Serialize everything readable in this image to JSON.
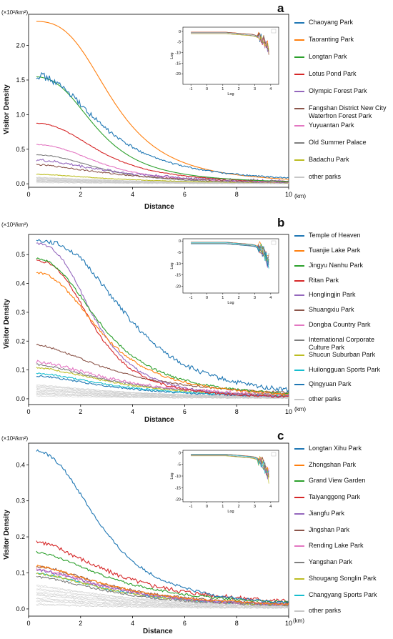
{
  "figure": {
    "xlabel": "Distance",
    "ylabel": "Visitor Density",
    "x_unit": "(km)",
    "y_unit": "(×10²/km²)",
    "inset_xlabel": "Log",
    "inset_ylabel": "Log"
  },
  "chart_data": [
    {
      "panel": "a",
      "type": "line",
      "xlabel": "Distance",
      "ylabel": "Visitor Density",
      "xlim": [
        0,
        10
      ],
      "ylim": [
        -0.05,
        2.45
      ],
      "xticks": [
        0,
        2,
        4,
        6,
        8,
        10
      ],
      "yticks": [
        0.0,
        0.5,
        1.0,
        1.5,
        2.0
      ],
      "ytick_labels": [
        "0.0",
        "0.5",
        "1.0",
        "1.5",
        "2.0"
      ],
      "legend_position": "right outside",
      "series": [
        {
          "name": "Chaoyang Park",
          "color": "#1f77b4",
          "peak": 1.58,
          "noise": 0.06,
          "shape": "chaoyang"
        },
        {
          "name": "Taoranting Park",
          "color": "#ff7f0e",
          "peak": 2.35,
          "noise": 0,
          "shape": "taoranting"
        },
        {
          "name": "Longtan Park",
          "color": "#2ca02c",
          "peak": 1.55,
          "noise": 0,
          "shape": "longtan"
        },
        {
          "name": "Lotus Pond Park",
          "color": "#d62728",
          "peak": 0.88,
          "noise": 0.005,
          "shape": "mid"
        },
        {
          "name": "Olympic Forest Park",
          "color": "#9467bd",
          "peak": 0.35,
          "noise": 0.02,
          "shape": "slow"
        },
        {
          "name": "Fangshan District New City Waterfron Forest Park",
          "color": "#8c564b",
          "peak": 0.28,
          "noise": 0.01,
          "shape": "slow"
        },
        {
          "name": "Yuyuantan Park",
          "color": "#e377c2",
          "peak": 0.57,
          "noise": 0.005,
          "shape": "mid"
        },
        {
          "name": "Old Summer Palace",
          "color": "#7f7f7f",
          "peak": 0.42,
          "noise": 0.005,
          "shape": "mid"
        },
        {
          "name": "Badachu Park",
          "color": "#bcbd22",
          "peak": 0.14,
          "noise": 0.005,
          "shape": "slow"
        },
        {
          "name": "other parks",
          "color": "#c7c7c7",
          "peak": 0.1,
          "noise": 0.005,
          "shape": "others"
        }
      ],
      "inset": {
        "xlim": [
          -1.5,
          4.5
        ],
        "ylim": [
          -25,
          2
        ],
        "xticks": [
          -1,
          0,
          1,
          2,
          3,
          4
        ],
        "yticks": [
          0,
          -5,
          -10,
          -15,
          -20
        ]
      }
    },
    {
      "panel": "b",
      "type": "line",
      "xlabel": "Distance",
      "ylabel": "Visitor Density",
      "xlim": [
        0,
        10
      ],
      "ylim": [
        -0.02,
        0.57
      ],
      "xticks": [
        0,
        2,
        4,
        6,
        8,
        10
      ],
      "yticks": [
        0.0,
        0.1,
        0.2,
        0.3,
        0.4,
        0.5
      ],
      "ytick_labels": [
        "0.0",
        "0.1",
        "0.2",
        "0.3",
        "0.4",
        "0.5"
      ],
      "legend_position": "right outside",
      "series": [
        {
          "name": "Temple of Heaven",
          "color": "#1f77b4",
          "peak": 0.55,
          "noise": 0.008,
          "shape": "wide"
        },
        {
          "name": "Tuanjie Lake Park",
          "color": "#ff7f0e",
          "peak": 0.44,
          "noise": 0.004,
          "shape": "mid"
        },
        {
          "name": "Jingyu Nanhu Park",
          "color": "#2ca02c",
          "peak": 0.49,
          "noise": 0.004,
          "shape": "mid"
        },
        {
          "name": "Ritan Park",
          "color": "#d62728",
          "peak": 0.48,
          "noise": 0.004,
          "shape": "narrow"
        },
        {
          "name": "Honglingjin Park",
          "color": "#9467bd",
          "peak": 0.54,
          "noise": 0.004,
          "shape": "narrow"
        },
        {
          "name": "Shuangxiu Park",
          "color": "#8c564b",
          "peak": 0.19,
          "noise": 0.003,
          "shape": "slow"
        },
        {
          "name": "Dongba Country Park",
          "color": "#e377c2",
          "peak": 0.13,
          "noise": 0.006,
          "shape": "slow"
        },
        {
          "name": "International Corporate Culture Park",
          "color": "#7f7f7f",
          "peak": 0.12,
          "noise": 0.003,
          "shape": "slow"
        },
        {
          "name": "Shucun Suburban Park",
          "color": "#bcbd22",
          "peak": 0.11,
          "noise": 0.003,
          "shape": "slow"
        },
        {
          "name": "Huilongguan Sports Park",
          "color": "#17becf",
          "peak": 0.09,
          "noise": 0.003,
          "shape": "slow"
        },
        {
          "name": "Qingyuan Park",
          "color": "#1f77b4",
          "peak": 0.08,
          "noise": 0.003,
          "shape": "slow"
        },
        {
          "name": "other parks",
          "color": "#c7c7c7",
          "peak": 0.05,
          "noise": 0.002,
          "shape": "others"
        }
      ],
      "inset": {
        "xlim": [
          -1.5,
          4.5
        ],
        "ylim": [
          -23,
          1
        ],
        "xticks": [
          -1,
          0,
          1,
          2,
          3,
          4
        ],
        "yticks": [
          0,
          -5,
          -10,
          -15,
          -20
        ]
      }
    },
    {
      "panel": "c",
      "type": "line",
      "xlabel": "Distance",
      "ylabel": "Visitor Density",
      "xlim": [
        0,
        10
      ],
      "ylim": [
        -0.02,
        0.46
      ],
      "xticks": [
        0,
        2,
        4,
        6,
        8,
        10
      ],
      "yticks": [
        0.0,
        0.1,
        0.2,
        0.3,
        0.4
      ],
      "ytick_labels": [
        "0.0",
        "0.1",
        "0.2",
        "0.3",
        "0.4"
      ],
      "legend_position": "right outside",
      "series": [
        {
          "name": "Longtan Xihu Park",
          "color": "#1f77b4",
          "peak": 0.44,
          "noise": 0.004,
          "shape": "mid"
        },
        {
          "name": "Zhongshan Park",
          "color": "#ff7f0e",
          "peak": 0.12,
          "noise": 0.003,
          "shape": "slow"
        },
        {
          "name": "Grand View Garden",
          "color": "#2ca02c",
          "peak": 0.16,
          "noise": 0.003,
          "shape": "slow"
        },
        {
          "name": "Taiyanggong Park",
          "color": "#d62728",
          "peak": 0.19,
          "noise": 0.006,
          "shape": "slow"
        },
        {
          "name": "Jiangfu Park",
          "color": "#9467bd",
          "peak": 0.11,
          "noise": 0.004,
          "shape": "slow"
        },
        {
          "name": "Jingshan Park",
          "color": "#8c564b",
          "peak": 0.12,
          "noise": 0.004,
          "shape": "slow"
        },
        {
          "name": "Rending Lake Park",
          "color": "#e377c2",
          "peak": 0.11,
          "noise": 0.004,
          "shape": "slow"
        },
        {
          "name": "Yangshan Park",
          "color": "#7f7f7f",
          "peak": 0.09,
          "noise": 0.003,
          "shape": "slow"
        },
        {
          "name": "Shougang Songlin Park",
          "color": "#bcbd22",
          "peak": 0.1,
          "noise": 0.003,
          "shape": "slow"
        },
        {
          "name": "Changyang Sports Park",
          "color": "#17becf",
          "peak": 0.1,
          "noise": 0.003,
          "shape": "slow"
        },
        {
          "name": "other parks",
          "color": "#c7c7c7",
          "peak": 0.07,
          "noise": 0.002,
          "shape": "others"
        }
      ],
      "inset": {
        "xlim": [
          -1.5,
          4.5
        ],
        "ylim": [
          -21,
          1
        ],
        "xticks": [
          -1,
          0,
          1,
          2,
          3,
          4
        ],
        "yticks": [
          0,
          -5,
          -10,
          -15,
          -20
        ]
      }
    }
  ]
}
